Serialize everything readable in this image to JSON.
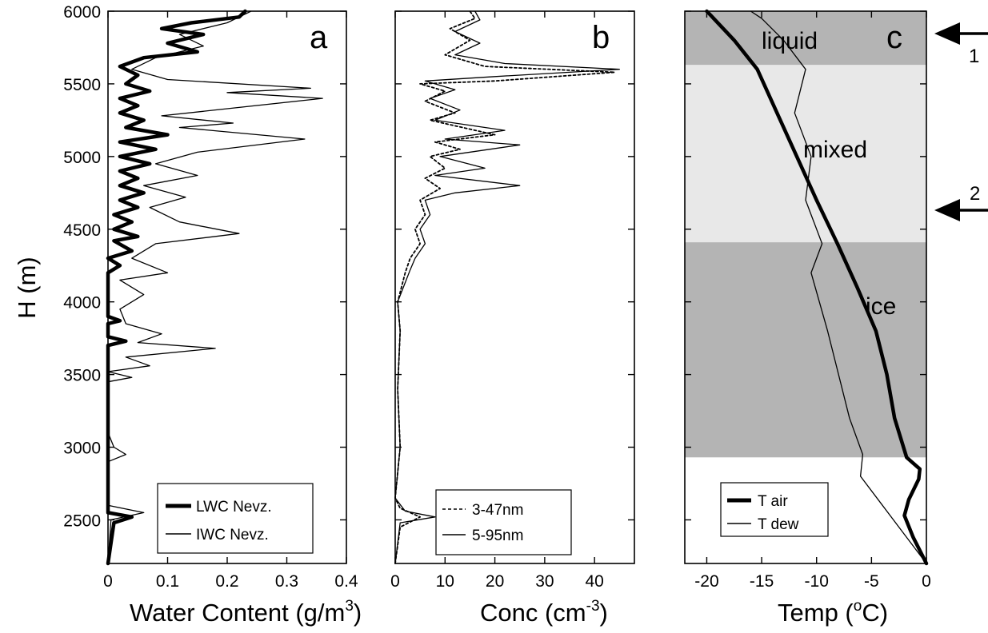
{
  "chart_data": [
    {
      "panel": "a",
      "type": "line",
      "panel_label": "a",
      "xlabel": "Water Content (g/m",
      "xlabel_sup": "3",
      "xlabel_tail": ")",
      "ylabel": "H (m)",
      "xlim": [
        0,
        0.4
      ],
      "ylim": [
        2200,
        6000
      ],
      "xticks": [
        "0",
        "0.1",
        "0.2",
        "0.3",
        "0.4"
      ],
      "yticks": [
        "2500",
        "3000",
        "3500",
        "4000",
        "4500",
        "5000",
        "5500",
        "6000"
      ],
      "series": [
        {
          "name": "LWC Nevz.",
          "style": "thick",
          "points": [
            [
              0,
              2200
            ],
            [
              0.01,
              2480
            ],
            [
              0.04,
              2520
            ],
            [
              0,
              2550
            ],
            [
              0,
              3700
            ],
            [
              0.03,
              3730
            ],
            [
              0,
              3760
            ],
            [
              0,
              3850
            ],
            [
              0.02,
              3870
            ],
            [
              0,
              3900
            ],
            [
              0,
              4200
            ],
            [
              0.02,
              4250
            ],
            [
              0,
              4300
            ],
            [
              0.04,
              4350
            ],
            [
              0.01,
              4420
            ],
            [
              0.05,
              4450
            ],
            [
              0.01,
              4500
            ],
            [
              0.04,
              4550
            ],
            [
              0.01,
              4600
            ],
            [
              0.05,
              4650
            ],
            [
              0.02,
              4700
            ],
            [
              0.06,
              4750
            ],
            [
              0.02,
              4800
            ],
            [
              0.05,
              4850
            ],
            [
              0.02,
              4900
            ],
            [
              0.07,
              4950
            ],
            [
              0.02,
              5000
            ],
            [
              0.08,
              5050
            ],
            [
              0.02,
              5100
            ],
            [
              0.1,
              5150
            ],
            [
              0.03,
              5200
            ],
            [
              0.06,
              5250
            ],
            [
              0.02,
              5300
            ],
            [
              0.05,
              5350
            ],
            [
              0.02,
              5400
            ],
            [
              0.07,
              5450
            ],
            [
              0.03,
              5500
            ],
            [
              0.05,
              5560
            ],
            [
              0.02,
              5620
            ],
            [
              0.06,
              5680
            ],
            [
              0.15,
              5720
            ],
            [
              0.1,
              5780
            ],
            [
              0.16,
              5840
            ],
            [
              0.09,
              5880
            ],
            [
              0.14,
              5920
            ],
            [
              0.22,
              5960
            ],
            [
              0.23,
              6000
            ]
          ]
        },
        {
          "name": "IWC Nevz.",
          "style": "thin",
          "points": [
            [
              0,
              2200
            ],
            [
              0.005,
              2500
            ],
            [
              0.06,
              2550
            ],
            [
              0,
              2600
            ],
            [
              0,
              2900
            ],
            [
              0.03,
              2950
            ],
            [
              0.01,
              3000
            ],
            [
              0,
              3100
            ],
            [
              0,
              3450
            ],
            [
              0.04,
              3480
            ],
            [
              0,
              3520
            ],
            [
              0.07,
              3560
            ],
            [
              0.03,
              3620
            ],
            [
              0.18,
              3680
            ],
            [
              0.05,
              3720
            ],
            [
              0.09,
              3780
            ],
            [
              0.03,
              3850
            ],
            [
              0.02,
              3950
            ],
            [
              0.06,
              4050
            ],
            [
              0.02,
              4150
            ],
            [
              0.1,
              4200
            ],
            [
              0.04,
              4300
            ],
            [
              0.08,
              4400
            ],
            [
              0.22,
              4470
            ],
            [
              0.12,
              4550
            ],
            [
              0.07,
              4650
            ],
            [
              0.13,
              4720
            ],
            [
              0.06,
              4800
            ],
            [
              0.15,
              4870
            ],
            [
              0.08,
              4950
            ],
            [
              0.15,
              5030
            ],
            [
              0.33,
              5120
            ],
            [
              0.12,
              5200
            ],
            [
              0.21,
              5230
            ],
            [
              0.09,
              5280
            ],
            [
              0.36,
              5400
            ],
            [
              0.2,
              5440
            ],
            [
              0.34,
              5470
            ],
            [
              0.1,
              5530
            ],
            [
              0.04,
              5600
            ],
            [
              0.08,
              5680
            ],
            [
              0.16,
              5760
            ],
            [
              0.12,
              5840
            ],
            [
              0.2,
              5920
            ],
            [
              0.24,
              6000
            ]
          ]
        }
      ]
    },
    {
      "panel": "b",
      "type": "line",
      "panel_label": "b",
      "xlabel": "Conc (cm",
      "xlabel_sup": "-3",
      "xlabel_tail": ")",
      "xlim": [
        0,
        48
      ],
      "ylim": [
        2200,
        6000
      ],
      "xticks": [
        "0",
        "10",
        "20",
        "30",
        "40"
      ],
      "series": [
        {
          "name": "3-47nm",
          "style": "dotted",
          "points": [
            [
              0,
              2200
            ],
            [
              1,
              2450
            ],
            [
              5,
              2520
            ],
            [
              1,
              2580
            ],
            [
              0,
              2650
            ],
            [
              1,
              3000
            ],
            [
              0.5,
              3400
            ],
            [
              1,
              3800
            ],
            [
              0.5,
              4000
            ],
            [
              2,
              4200
            ],
            [
              3,
              4300
            ],
            [
              5,
              4400
            ],
            [
              4,
              4500
            ],
            [
              6,
              4600
            ],
            [
              5,
              4700
            ],
            [
              9,
              4780
            ],
            [
              6,
              4850
            ],
            [
              10,
              4920
            ],
            [
              7,
              5000
            ],
            [
              13,
              5050
            ],
            [
              8,
              5100
            ],
            [
              20,
              5150
            ],
            [
              7,
              5250
            ],
            [
              12,
              5300
            ],
            [
              6,
              5380
            ],
            [
              10,
              5450
            ],
            [
              5,
              5500
            ],
            [
              20,
              5520
            ],
            [
              44,
              5580
            ],
            [
              18,
              5620
            ],
            [
              10,
              5700
            ],
            [
              15,
              5800
            ],
            [
              11,
              5880
            ],
            [
              16,
              5950
            ],
            [
              15,
              6000
            ]
          ]
        },
        {
          "name": "5-95nm",
          "style": "thin",
          "points": [
            [
              0,
              2200
            ],
            [
              1,
              2480
            ],
            [
              8,
              2520
            ],
            [
              2,
              2560
            ],
            [
              0,
              2650
            ],
            [
              1,
              3000
            ],
            [
              0.5,
              3400
            ],
            [
              1,
              3800
            ],
            [
              0.5,
              4000
            ],
            [
              3,
              4220
            ],
            [
              4,
              4300
            ],
            [
              6,
              4400
            ],
            [
              5,
              4500
            ],
            [
              7,
              4600
            ],
            [
              6,
              4700
            ],
            [
              12,
              4750
            ],
            [
              25,
              4800
            ],
            [
              8,
              4870
            ],
            [
              18,
              4920
            ],
            [
              9,
              5000
            ],
            [
              25,
              5080
            ],
            [
              10,
              5120
            ],
            [
              22,
              5180
            ],
            [
              8,
              5250
            ],
            [
              13,
              5320
            ],
            [
              7,
              5400
            ],
            [
              12,
              5460
            ],
            [
              6,
              5520
            ],
            [
              20,
              5550
            ],
            [
              45,
              5600
            ],
            [
              22,
              5640
            ],
            [
              12,
              5700
            ],
            [
              17,
              5780
            ],
            [
              12,
              5860
            ],
            [
              17,
              5940
            ],
            [
              16,
              6000
            ]
          ]
        }
      ]
    },
    {
      "panel": "c",
      "type": "line",
      "panel_label": "c",
      "xlabel": "Temp (",
      "xlabel_sup": "o",
      "xlabel_tail": "C)",
      "xlim": [
        -22,
        0
      ],
      "ylim": [
        2200,
        6000
      ],
      "xticks": [
        "-20",
        "-15",
        "-10",
        "-5",
        "0"
      ],
      "zones": [
        {
          "label": "liquid",
          "from": 5630,
          "to": 6000,
          "shade": "#b4b4b4"
        },
        {
          "label": "mixed",
          "from": 4410,
          "to": 5630,
          "shade": "#e8e8e8"
        },
        {
          "label": "ice",
          "from": 2930,
          "to": 4410,
          "shade": "#b4b4b4"
        }
      ],
      "arrows": [
        {
          "label": "1",
          "y": 5870
        },
        {
          "label": "2",
          "y": 4660
        }
      ],
      "series": [
        {
          "name": "T air",
          "style": "thick",
          "points": [
            [
              0,
              2200
            ],
            [
              -1.2,
              2380
            ],
            [
              -2,
              2530
            ],
            [
              -1.6,
              2640
            ],
            [
              -0.7,
              2780
            ],
            [
              -0.6,
              2850
            ],
            [
              -1.8,
              2930
            ],
            [
              -2.9,
              3200
            ],
            [
              -3.6,
              3500
            ],
            [
              -4.6,
              3800
            ],
            [
              -6.3,
              4100
            ],
            [
              -8.1,
              4400
            ],
            [
              -10,
              4700
            ],
            [
              -11.8,
              5000
            ],
            [
              -13.6,
              5300
            ],
            [
              -15.4,
              5600
            ],
            [
              -17.5,
              5800
            ],
            [
              -20,
              6000
            ]
          ]
        },
        {
          "name": "T dew",
          "style": "thin",
          "points": [
            [
              0,
              2200
            ],
            [
              -2,
              2400
            ],
            [
              -4,
              2600
            ],
            [
              -6,
              2800
            ],
            [
              -5.8,
              2950
            ],
            [
              -7,
              3200
            ],
            [
              -8,
              3500
            ],
            [
              -9,
              3800
            ],
            [
              -10.5,
              4200
            ],
            [
              -9.5,
              4400
            ],
            [
              -11,
              4700
            ],
            [
              -10.5,
              5000
            ],
            [
              -12,
              5300
            ],
            [
              -11,
              5600
            ],
            [
              -13,
              5800
            ],
            [
              -15,
              5950
            ],
            [
              -16,
              6000
            ]
          ]
        }
      ]
    }
  ]
}
